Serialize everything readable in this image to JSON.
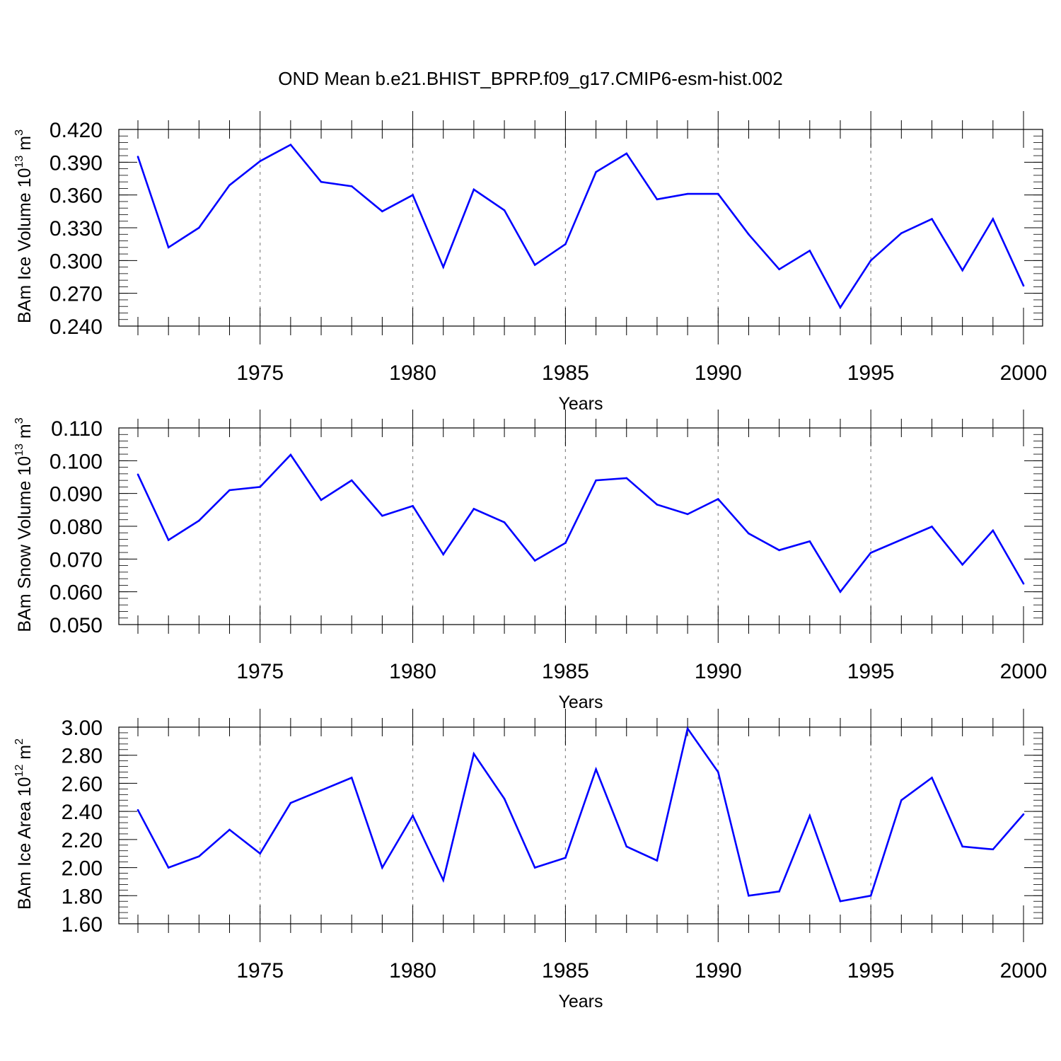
{
  "figure": {
    "title": "OND Mean b.e21.BHIST_BPRP.f09_g17.CMIP6-esm-hist.002",
    "line_color": "#0000ff",
    "grid_color": "#888888"
  },
  "chart_data": [
    {
      "type": "line",
      "title": "OND Mean b.e21.BHIST_BPRP.f09_g17.CMIP6-esm-hist.002",
      "xlabel": "Years",
      "ylabel": {
        "prefix": "BAm Ice Volume 10",
        "exp": "13",
        "unit": " m",
        "unit_exp": "3"
      },
      "xlim": [
        1971,
        2000
      ],
      "ylim": [
        0.24,
        0.42
      ],
      "x_ticks": [
        1975,
        1980,
        1985,
        1990,
        1995,
        2000
      ],
      "y_ticks": [
        "0.420",
        "0.390",
        "0.360",
        "0.330",
        "0.300",
        "0.270",
        "0.240"
      ],
      "y_tick_values": [
        0.42,
        0.39,
        0.36,
        0.33,
        0.3,
        0.27,
        0.24
      ],
      "grid": "vertical dashed at x ticks",
      "series": [
        {
          "x": [
            1971,
            1972,
            1973,
            1974,
            1975,
            1976,
            1977,
            1978,
            1979,
            1980,
            1981,
            1982,
            1983,
            1984,
            1985,
            1986,
            1987,
            1988,
            1989,
            1990,
            1991,
            1992,
            1993,
            1994,
            1995,
            1996,
            1997,
            1998,
            1999,
            2000
          ],
          "values": [
            0.395,
            0.312,
            0.33,
            0.369,
            0.391,
            0.406,
            0.372,
            0.368,
            0.345,
            0.36,
            0.294,
            0.365,
            0.346,
            0.296,
            0.315,
            0.381,
            0.398,
            0.356,
            0.361,
            0.361,
            0.324,
            0.292,
            0.309,
            0.257,
            0.3,
            0.325,
            0.338,
            0.291,
            0.338,
            0.277
          ]
        }
      ]
    },
    {
      "type": "line",
      "xlabel": "Years",
      "ylabel": {
        "prefix": "BAm Snow Volume 10",
        "exp": "13",
        "unit": " m",
        "unit_exp": "3"
      },
      "xlim": [
        1971,
        2000
      ],
      "ylim": [
        0.05,
        0.11
      ],
      "x_ticks": [
        1975,
        1980,
        1985,
        1990,
        1995,
        2000
      ],
      "y_ticks": [
        "0.110",
        "0.100",
        "0.090",
        "0.080",
        "0.070",
        "0.060",
        "0.050"
      ],
      "y_tick_values": [
        0.11,
        0.1,
        0.09,
        0.08,
        0.07,
        0.06,
        0.05
      ],
      "grid": "vertical dashed at x ticks",
      "series": [
        {
          "x": [
            1971,
            1972,
            1973,
            1974,
            1975,
            1976,
            1977,
            1978,
            1979,
            1980,
            1981,
            1982,
            1983,
            1984,
            1985,
            1986,
            1987,
            1988,
            1989,
            1990,
            1991,
            1992,
            1993,
            1994,
            1995,
            1996,
            1997,
            1998,
            1999,
            2000
          ],
          "values": [
            0.0958,
            0.0758,
            0.0817,
            0.091,
            0.092,
            0.1018,
            0.088,
            0.094,
            0.0832,
            0.0862,
            0.0714,
            0.0853,
            0.0812,
            0.0695,
            0.0749,
            0.094,
            0.0947,
            0.0866,
            0.0837,
            0.0883,
            0.0778,
            0.0727,
            0.0754,
            0.06,
            0.0719,
            0.0759,
            0.0799,
            0.0683,
            0.0787,
            0.0625
          ]
        }
      ]
    },
    {
      "type": "line",
      "xlabel": "Years",
      "ylabel": {
        "prefix": "BAm Ice Area 10",
        "exp": "12",
        "unit": " m",
        "unit_exp": "2"
      },
      "xlim": [
        1971,
        2000
      ],
      "ylim": [
        1.6,
        3.0
      ],
      "x_ticks": [
        1975,
        1980,
        1985,
        1990,
        1995,
        2000
      ],
      "y_ticks": [
        "3.00",
        "2.80",
        "2.60",
        "2.40",
        "2.20",
        "2.00",
        "1.80",
        "1.60"
      ],
      "y_tick_values": [
        3.0,
        2.8,
        2.6,
        2.4,
        2.2,
        2.0,
        1.8,
        1.6
      ],
      "grid": "vertical dashed at x ticks",
      "series": [
        {
          "x": [
            1971,
            1972,
            1973,
            1974,
            1975,
            1976,
            1977,
            1978,
            1979,
            1980,
            1981,
            1982,
            1983,
            1984,
            1985,
            1986,
            1987,
            1988,
            1989,
            1990,
            1991,
            1992,
            1993,
            1994,
            1995,
            1996,
            1997,
            1998,
            1999,
            2000
          ],
          "values": [
            2.41,
            2.0,
            2.08,
            2.27,
            2.1,
            2.46,
            2.55,
            2.64,
            2.0,
            2.37,
            1.91,
            2.81,
            2.49,
            2.0,
            2.07,
            2.7,
            2.15,
            2.05,
            2.99,
            2.68,
            1.8,
            1.83,
            2.37,
            1.76,
            1.8,
            2.48,
            2.64,
            2.15,
            2.13,
            2.38
          ]
        }
      ]
    }
  ]
}
